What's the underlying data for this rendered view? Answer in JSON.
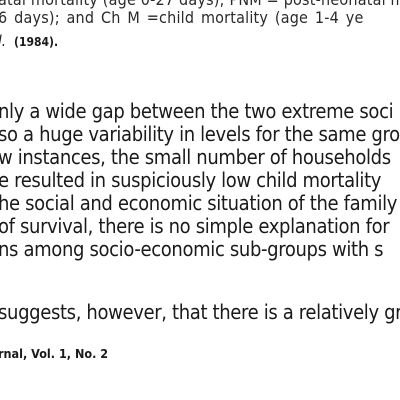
{
  "top_lines": {
    "line_1": "atal mortality (age 0-27 days); PNM = post-neonatal mortality (age",
    "line_2": "6 days); and Ch M  =child mortality (age 1-4 ye",
    "citation_etal": "l.",
    "citation_year": "(1984)."
  },
  "body_paragraph": [
    "nly a wide gap between the two extreme soci",
    "so a huge variability in levels for the same gro",
    "w instances, the small number of households",
    "e resulted in suspiciously low child mortality",
    "he social and economic situation of the family",
    "of survival, there is no simple explanation for",
    "ns among socio-economic sub-groups with s"
  ],
  "second_paragraph": "suggests, however, that there is a relatively gr",
  "footer": {
    "journal": "rnal, Vol. 1, No. 2"
  }
}
